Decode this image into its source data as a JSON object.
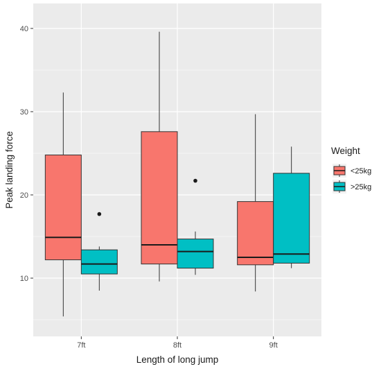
{
  "chart_data": {
    "type": "boxplot",
    "xlabel": "Length of long jump",
    "ylabel": "Peak landing force",
    "categories": [
      "7ft",
      "8ft",
      "9ft"
    ],
    "ylim": [
      3,
      43
    ],
    "yticks": [
      10,
      20,
      30,
      40
    ],
    "grid": true,
    "legend": {
      "title": "Weight",
      "position": "right"
    },
    "series": [
      {
        "name": "<25kg",
        "color": "#F8766D",
        "boxes": [
          {
            "category": "7ft",
            "min": 5.4,
            "q1": 12.2,
            "median": 14.9,
            "q3": 24.8,
            "max": 32.3,
            "outliers": []
          },
          {
            "category": "8ft",
            "min": 9.6,
            "q1": 11.7,
            "median": 14.0,
            "q3": 27.6,
            "max": 39.6,
            "outliers": []
          },
          {
            "category": "9ft",
            "min": 8.4,
            "q1": 11.6,
            "median": 12.5,
            "q3": 19.2,
            "max": 29.7,
            "outliers": []
          }
        ]
      },
      {
        "name": ">25kg",
        "color": "#00BFC4",
        "boxes": [
          {
            "category": "7ft",
            "min": 8.5,
            "q1": 10.5,
            "median": 11.7,
            "q3": 13.4,
            "max": 13.8,
            "outliers": [
              17.7
            ]
          },
          {
            "category": "8ft",
            "min": 10.4,
            "q1": 11.2,
            "median": 13.2,
            "q3": 14.7,
            "max": 15.6,
            "outliers": [
              21.7
            ]
          },
          {
            "category": "9ft",
            "min": 11.2,
            "q1": 11.8,
            "median": 12.9,
            "q3": 22.6,
            "max": 25.8,
            "outliers": []
          }
        ]
      }
    ]
  }
}
